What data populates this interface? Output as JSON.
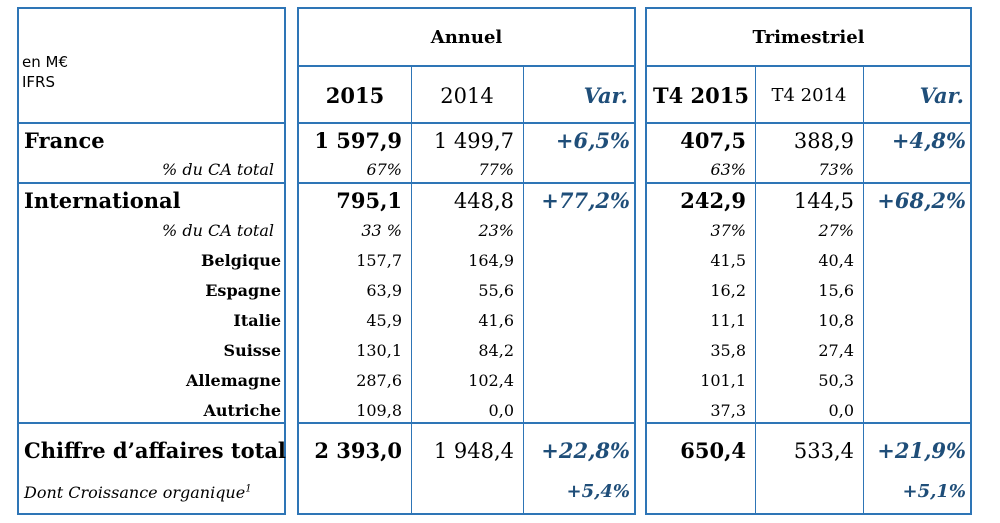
{
  "header": {
    "unit_line1": "en M€",
    "unit_line2": "IFRS",
    "group_annual": "Annuel",
    "group_quarterly": "Trimestriel",
    "cols": [
      "2015",
      "2014",
      "Var.",
      "T4 2015",
      "T4 2014",
      "Var."
    ]
  },
  "rows": {
    "france": {
      "label": "France",
      "v": [
        "1 597,9",
        "1 499,7",
        "+6,5%",
        "407,5",
        "388,9",
        "+4,8%"
      ]
    },
    "france_pct": {
      "label": "% du CA total",
      "v": [
        "67%",
        "77%",
        "",
        "63%",
        "73%",
        ""
      ]
    },
    "intl": {
      "label": "International",
      "v": [
        "795,1",
        "448,8",
        "+77,2%",
        "242,9",
        "144,5",
        "+68,2%"
      ]
    },
    "intl_pct": {
      "label": "% du CA total",
      "v": [
        "33 %",
        "23%",
        "",
        "37%",
        "27%",
        ""
      ]
    },
    "belgique": {
      "label": "Belgique",
      "v": [
        "157,7",
        "164,9",
        "",
        "41,5",
        "40,4",
        ""
      ]
    },
    "espagne": {
      "label": "Espagne",
      "v": [
        "63,9",
        "55,6",
        "",
        "16,2",
        "15,6",
        ""
      ]
    },
    "italie": {
      "label": "Italie",
      "v": [
        "45,9",
        "41,6",
        "",
        "11,1",
        "10,8",
        ""
      ]
    },
    "suisse": {
      "label": "Suisse",
      "v": [
        "130,1",
        "84,2",
        "",
        "35,8",
        "27,4",
        ""
      ]
    },
    "allemagne": {
      "label": "Allemagne",
      "v": [
        "287,6",
        "102,4",
        "",
        "101,1",
        "50,3",
        ""
      ]
    },
    "autriche": {
      "label": "Autriche",
      "v": [
        "109,8",
        "0,0",
        "",
        "37,3",
        "0,0",
        ""
      ]
    },
    "total": {
      "label": "Chiffre d’affaires total",
      "v": [
        "2 393,0",
        "1 948,4",
        "+22,8%",
        "650,4",
        "533,4",
        "+21,9%"
      ]
    },
    "organic": {
      "label": "Dont Croissance organique",
      "footnote": "1",
      "v": [
        "",
        "",
        "+5,4%",
        "",
        "",
        "+5,1%"
      ]
    }
  },
  "colors": {
    "border": "#2e75b6",
    "variation": "#1f4e79"
  }
}
